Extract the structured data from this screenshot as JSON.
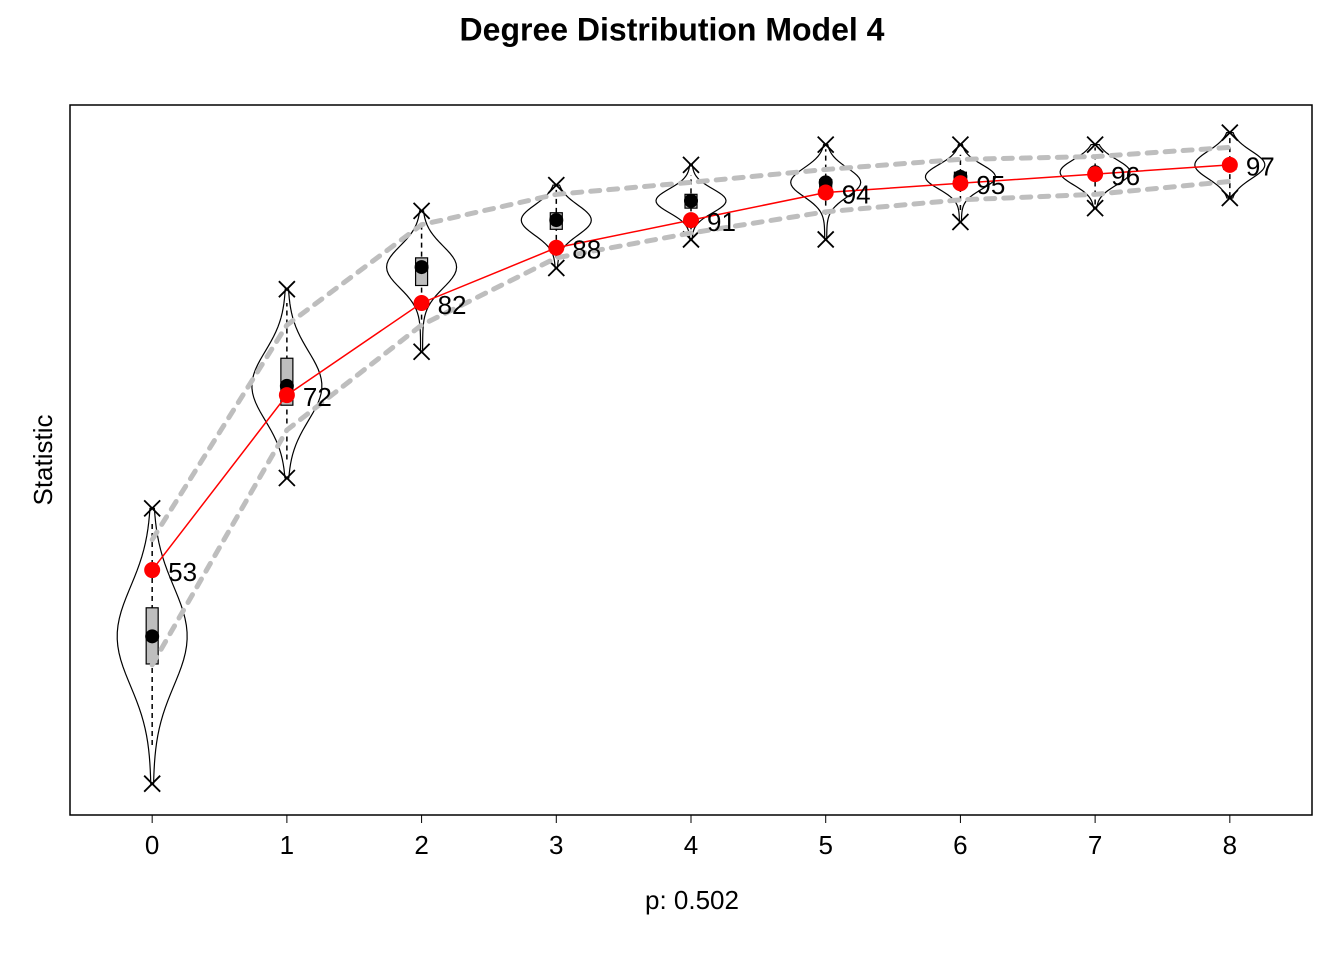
{
  "chart_data": {
    "type": "gof",
    "title": "Degree Distribution Model 4",
    "x_label": "p: 0.502",
    "y_label": "Statistic",
    "x": [
      0,
      1,
      2,
      3,
      4,
      5,
      6,
      7,
      8
    ],
    "values": [
      53,
      72,
      82,
      88,
      91,
      94,
      95,
      96,
      97
    ],
    "color": "#ff0000",
    "xlim": [
      -0.61,
      8.61
    ],
    "xticks": [
      0,
      1,
      2,
      3,
      4,
      5,
      6,
      7,
      8
    ],
    "ylim": [
      26.4,
      103.5
    ],
    "box": {
      "median": [
        45.8,
        73.0,
        85.9,
        91.0,
        93.1,
        95.1,
        95.7,
        96.2,
        97.0
      ],
      "q1": [
        42.8,
        70.9,
        83.9,
        90.0,
        92.3,
        94.3,
        95.1,
        95.6,
        96.5
      ],
      "q3": [
        48.9,
        76.0,
        86.9,
        91.8,
        93.8,
        95.4,
        96.2,
        96.5,
        97.3
      ],
      "whisker_low": [
        34.0,
        65.0,
        80.2,
        86.9,
        90.0,
        91.6,
        92.1,
        92.7,
        93.5
      ],
      "whisker_high": [
        58.4,
        82.0,
        90.5,
        94.3,
        95.9,
        98.7,
        98.1,
        98.9,
        100.3
      ]
    },
    "extremes": {
      "low": [
        29.8,
        63.0,
        76.7,
        85.8,
        88.9,
        88.9,
        90.8,
        92.3,
        93.4
      ],
      "high": [
        59.7,
        83.5,
        92.0,
        94.8,
        97.0,
        99.2,
        99.2,
        99.2,
        100.5
      ]
    },
    "band": {
      "low": [
        42.7,
        68.2,
        79.6,
        86.9,
        89.6,
        91.9,
        93.2,
        93.8,
        95.2
      ],
      "high": [
        56.3,
        79.6,
        90.5,
        93.8,
        95.1,
        96.5,
        97.6,
        97.9,
        98.9
      ]
    }
  }
}
